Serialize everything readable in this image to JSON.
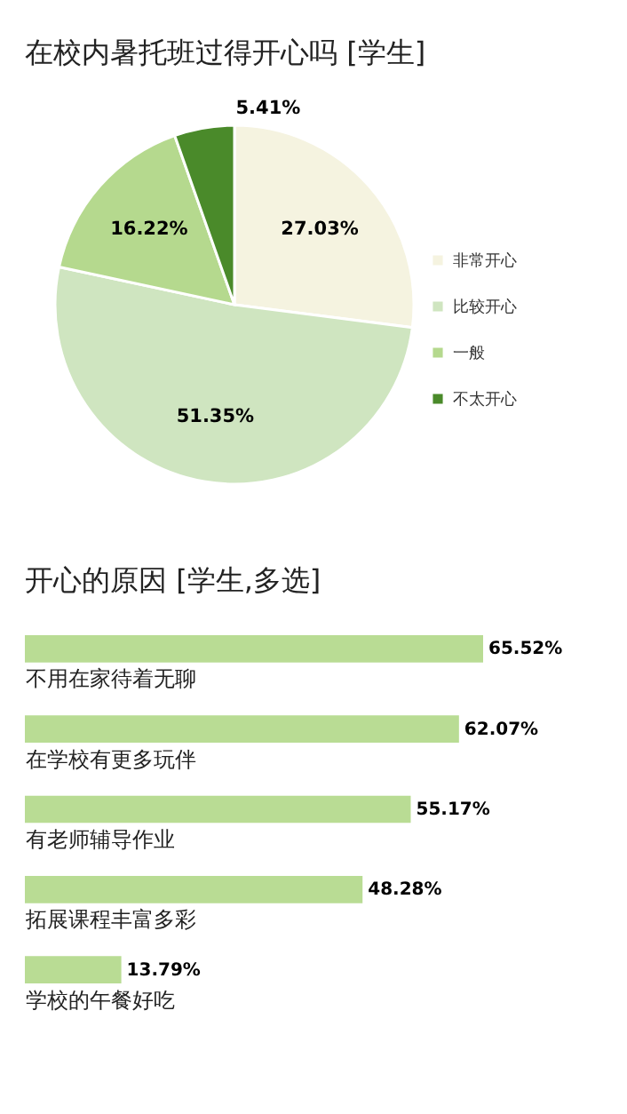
{
  "chart_data": [
    {
      "type": "pie",
      "title": "在校内暑托班过得开心吗 [学生]",
      "categories": [
        "非常开心",
        "比较开心",
        "一般",
        "不太开心"
      ],
      "values": [
        27.03,
        51.35,
        16.22,
        5.41
      ],
      "colors": [
        "#f5f3e0",
        "#cfe5c0",
        "#b5d98e",
        "#4a8a2a"
      ],
      "value_labels": [
        "27.03%",
        "51.35%",
        "16.22%",
        "5.41%"
      ],
      "legend": "right"
    },
    {
      "type": "bar",
      "orientation": "horizontal",
      "title": "开心的原因 [学生,多选]",
      "categories": [
        "不用在家待着无聊",
        "在学校有更多玩伴",
        "有老师辅导作业",
        "拓展课程丰富多彩",
        "学校的午餐好吃"
      ],
      "values": [
        65.52,
        62.07,
        55.17,
        48.28,
        13.79
      ],
      "color": "#b9dc94",
      "value_labels": [
        "65.52%",
        "62.07%",
        "55.17%",
        "48.28%",
        "13.79%"
      ]
    }
  ]
}
